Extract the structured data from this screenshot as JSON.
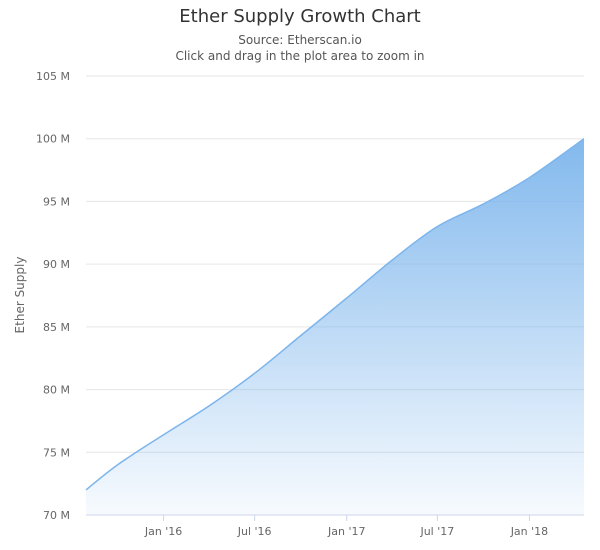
{
  "chart_data": {
    "type": "area",
    "title": "Ether Supply Growth Chart",
    "subtitles": [
      "Source: Etherscan.io",
      "Click and drag in the plot area to zoom in"
    ],
    "xlabel": "",
    "ylabel": "Ether Supply",
    "ylim": [
      70000000,
      105000000
    ],
    "yticks": [
      {
        "value": 70000000,
        "label": "70 M"
      },
      {
        "value": 75000000,
        "label": "75 M"
      },
      {
        "value": 80000000,
        "label": "80 M"
      },
      {
        "value": 85000000,
        "label": "85 M"
      },
      {
        "value": 90000000,
        "label": "90 M"
      },
      {
        "value": 95000000,
        "label": "95 M"
      },
      {
        "value": 100000000,
        "label": "100 M"
      },
      {
        "value": 105000000,
        "label": "105 M"
      }
    ],
    "xlim": [
      "2015-07-30",
      "2018-04-20"
    ],
    "xticks": [
      {
        "date": "2016-01-01",
        "label": "Jan '16"
      },
      {
        "date": "2016-07-01",
        "label": "Jul '16"
      },
      {
        "date": "2017-01-01",
        "label": "Jan '17"
      },
      {
        "date": "2017-07-01",
        "label": "Jul '17"
      },
      {
        "date": "2018-01-01",
        "label": "Jan '18"
      }
    ],
    "grid": true,
    "series": [
      {
        "color": "#7cb5ec",
        "points": [
          {
            "x": "2015-07-30",
            "y": 72000000
          },
          {
            "x": "2015-10-01",
            "y": 74000000
          },
          {
            "x": "2016-01-01",
            "y": 76400000
          },
          {
            "x": "2016-04-01",
            "y": 78700000
          },
          {
            "x": "2016-07-01",
            "y": 81300000
          },
          {
            "x": "2016-10-01",
            "y": 84300000
          },
          {
            "x": "2017-01-01",
            "y": 87300000
          },
          {
            "x": "2017-04-01",
            "y": 90300000
          },
          {
            "x": "2017-07-01",
            "y": 93000000
          },
          {
            "x": "2017-10-01",
            "y": 94800000
          },
          {
            "x": "2018-01-01",
            "y": 96900000
          },
          {
            "x": "2018-04-20",
            "y": 100000000
          }
        ]
      }
    ]
  }
}
